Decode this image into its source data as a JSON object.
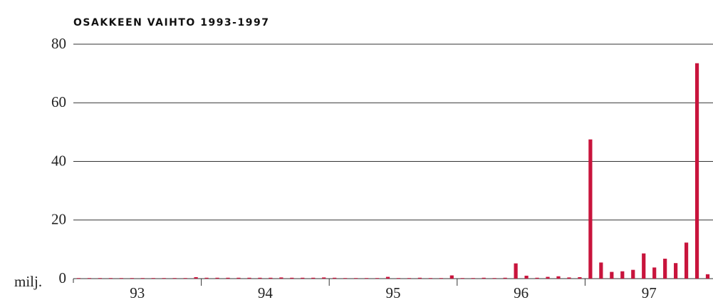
{
  "chart_data": {
    "type": "bar",
    "title": "OSAKKEEN VAIHTO 1993-1997",
    "y_unit": "milj.",
    "year_labels": [
      "93",
      "94",
      "95",
      "96",
      "97"
    ],
    "values": [
      0.2,
      0.2,
      0.2,
      0.2,
      0.2,
      0.2,
      0.2,
      0.2,
      0.2,
      0.2,
      0.2,
      0.5,
      0.3,
      0.3,
      0.3,
      0.3,
      0.3,
      0.3,
      0.3,
      0.4,
      0.3,
      0.3,
      0.3,
      0.4,
      0.3,
      0.2,
      0.2,
      0.2,
      0.2,
      0.6,
      0.2,
      0.2,
      0.3,
      0.2,
      0.2,
      1.1,
      0.2,
      0.2,
      0.3,
      0.2,
      0.3,
      5.2,
      1,
      0.3,
      0.6,
      0.8,
      0.4,
      0.5,
      47.5,
      5.5,
      2.3,
      2.5,
      3,
      8.6,
      3.8,
      6.8,
      5.3,
      12.3,
      73.5,
      1.5
    ],
    "color": "#c8143c",
    "ylim": [
      0,
      80
    ],
    "yticks": [
      0,
      20,
      40,
      60,
      80
    ],
    "grid": true
  }
}
